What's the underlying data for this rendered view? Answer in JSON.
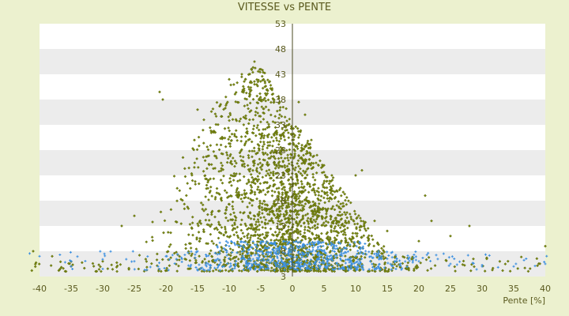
{
  "chart_data": {
    "type": "scatter",
    "title": "VITESSE vs PENTE",
    "xlabel": "Pente [%]",
    "ylabel": "",
    "xlim": [
      -40,
      40
    ],
    "ylim": [
      3,
      53
    ],
    "x_ticks": [
      -40,
      -35,
      -30,
      -25,
      -20,
      -15,
      -10,
      -5,
      0,
      5,
      10,
      15,
      20,
      25,
      30,
      35,
      40
    ],
    "y_ticks": [
      3,
      8,
      13,
      18,
      23,
      28,
      33,
      38,
      43,
      48,
      53
    ],
    "bands": "alternating white / light gray every 5 units",
    "grid": false,
    "legend": "none",
    "series": [
      {
        "color": "#7a8a10",
        "marker": "diamond",
        "point_count": 2500,
        "distribution": "dense cluster peaking near x=-5 (up to y≈45), broad spread for x between -25 and 15, flattening to y≈5-10 for positive slopes",
        "sample_points": [
          [
            -21,
            39.5
          ],
          [
            -20.5,
            38
          ],
          [
            -15,
            36
          ],
          [
            -14,
            34
          ],
          [
            -10,
            42
          ],
          [
            -8,
            43
          ],
          [
            -6,
            45.5
          ],
          [
            -5,
            44
          ],
          [
            -4,
            40
          ],
          [
            -3,
            38
          ],
          [
            -2,
            35
          ],
          [
            0,
            30
          ],
          [
            1,
            37.5
          ],
          [
            2,
            35
          ],
          [
            3,
            30
          ],
          [
            5,
            25
          ],
          [
            7,
            20
          ],
          [
            10,
            23
          ],
          [
            11,
            24
          ],
          [
            13,
            14
          ],
          [
            15,
            12
          ],
          [
            20,
            10
          ],
          [
            21,
            19
          ],
          [
            22,
            14
          ],
          [
            25,
            11
          ],
          [
            28,
            13
          ],
          [
            40,
            9
          ],
          [
            -25,
            15
          ],
          [
            -27,
            13
          ],
          [
            -30,
            6
          ],
          [
            -35,
            5
          ],
          [
            -38,
            7
          ],
          [
            -41,
            8
          ]
        ]
      },
      {
        "color": "#3b8fe0",
        "marker": "plus",
        "point_count": 700,
        "distribution": "low band roughly y 4-10 across all slopes, concentrated between x=-10 and x=15",
        "sample_points": [
          [
            -40,
            7
          ],
          [
            -35,
            5
          ],
          [
            -30,
            4.5
          ],
          [
            -25,
            6
          ],
          [
            -20,
            7
          ],
          [
            -15,
            8
          ],
          [
            -10,
            9
          ],
          [
            -5,
            9.5
          ],
          [
            0,
            9
          ],
          [
            5,
            8
          ],
          [
            10,
            7
          ],
          [
            15,
            6.5
          ],
          [
            20,
            6
          ],
          [
            25,
            5.5
          ],
          [
            30,
            5
          ],
          [
            35,
            5
          ],
          [
            40,
            5.5
          ]
        ]
      }
    ]
  }
}
